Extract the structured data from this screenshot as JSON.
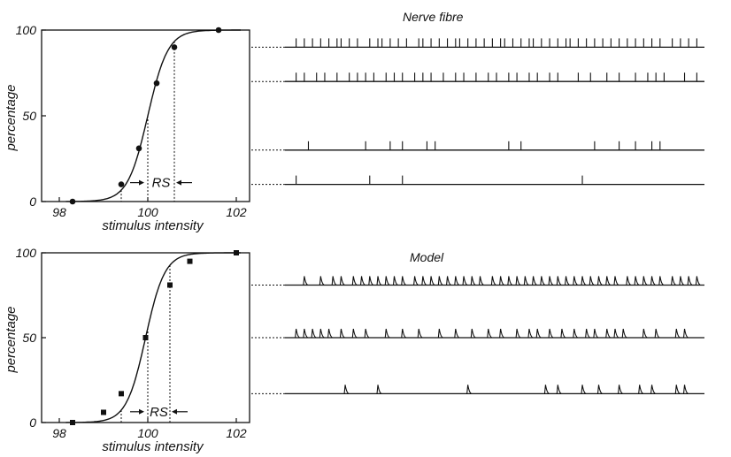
{
  "chart_data": [
    {
      "type": "scatter",
      "panel": "top",
      "xlabel": "stimulus intensity",
      "ylabel": "percentage",
      "xlim": [
        97.6,
        102.3
      ],
      "ylim": [
        0,
        100
      ],
      "x_ticks": [
        "98",
        "100",
        "102"
      ],
      "y_ticks": [
        "0",
        "50",
        "100"
      ],
      "marker": "circle",
      "points": [
        {
          "x": 98.3,
          "y": 0
        },
        {
          "x": 99.4,
          "y": 10
        },
        {
          "x": 99.8,
          "y": 31
        },
        {
          "x": 100.2,
          "y": 69
        },
        {
          "x": 100.6,
          "y": 90
        },
        {
          "x": 101.6,
          "y": 100
        }
      ],
      "fit_curve": {
        "midpoint": 100.0,
        "slope": 2.0
      },
      "dotted_lines_x": [
        99.4,
        100.0,
        100.6
      ],
      "annotation": "RS",
      "traces": {
        "title": "Nerve fibre",
        "style": "ticks",
        "rows": [
          {
            "level": 90,
            "spikes": [
              1,
              3,
              5,
              7,
              9,
              11,
              12,
              14,
              16,
              19,
              21,
              22,
              24,
              26,
              28,
              31,
              32,
              34,
              36,
              38,
              40,
              41,
              43,
              45,
              47,
              49,
              51,
              52,
              54,
              56,
              58,
              59,
              61,
              63,
              65,
              67,
              68,
              70,
              72,
              74,
              76,
              78,
              80,
              82,
              84,
              86,
              88,
              90,
              93,
              95,
              97,
              99
            ]
          },
          {
            "level": 70,
            "spikes": [
              1,
              3,
              6,
              8,
              11,
              14,
              16,
              18,
              20,
              23,
              25,
              27,
              30,
              32,
              34,
              37,
              40,
              42,
              45,
              48,
              50,
              53,
              55,
              58,
              60,
              63,
              65,
              70,
              73,
              77,
              80,
              84,
              87,
              89,
              91,
              96,
              99
            ]
          },
          {
            "level": 30,
            "spikes": [
              4,
              18,
              24,
              27,
              33,
              35,
              53,
              56,
              74,
              80,
              84,
              88,
              90
            ]
          },
          {
            "level": 10,
            "spikes": [
              1,
              19,
              27,
              71
            ]
          }
        ]
      }
    },
    {
      "type": "scatter",
      "panel": "bottom",
      "xlabel": "stimulus intensity",
      "ylabel": "percentage",
      "xlim": [
        97.6,
        102.3
      ],
      "ylim": [
        0,
        100
      ],
      "x_ticks": [
        "98",
        "100",
        "102"
      ],
      "y_ticks": [
        "0",
        "50",
        "100"
      ],
      "marker": "square",
      "points": [
        {
          "x": 98.3,
          "y": 0
        },
        {
          "x": 99.0,
          "y": 6
        },
        {
          "x": 99.4,
          "y": 17
        },
        {
          "x": 99.95,
          "y": 50
        },
        {
          "x": 100.5,
          "y": 81
        },
        {
          "x": 100.95,
          "y": 95
        },
        {
          "x": 102.0,
          "y": 100
        }
      ],
      "fit_curve": {
        "midpoint": 99.95,
        "slope": 2.1
      },
      "dotted_lines_x": [
        99.4,
        100.0,
        100.5
      ],
      "annotation": "RS",
      "traces": {
        "title": "Model",
        "style": "sawtooth",
        "rows": [
          {
            "level": 81,
            "spikes": [
              3,
              7,
              10,
              12,
              15,
              17,
              19,
              21,
              23,
              25,
              27,
              30,
              32,
              34,
              36,
              38,
              40,
              42,
              44,
              46,
              49,
              51,
              53,
              55,
              57,
              59,
              61,
              63,
              65,
              67,
              69,
              71,
              73,
              75,
              77,
              79,
              82,
              84,
              86,
              88,
              90,
              93,
              95,
              97,
              99
            ]
          },
          {
            "level": 50,
            "spikes": [
              1,
              3,
              5,
              7,
              9,
              12,
              15,
              18,
              23,
              27,
              31,
              36,
              40,
              44,
              48,
              51,
              55,
              58,
              60,
              63,
              66,
              69,
              72,
              74,
              77,
              79,
              81,
              86,
              89,
              94,
              96
            ]
          },
          {
            "level": 17,
            "spikes": [
              13,
              21,
              43,
              62,
              65,
              71,
              75,
              80,
              85,
              88,
              94,
              96
            ]
          }
        ]
      }
    }
  ]
}
